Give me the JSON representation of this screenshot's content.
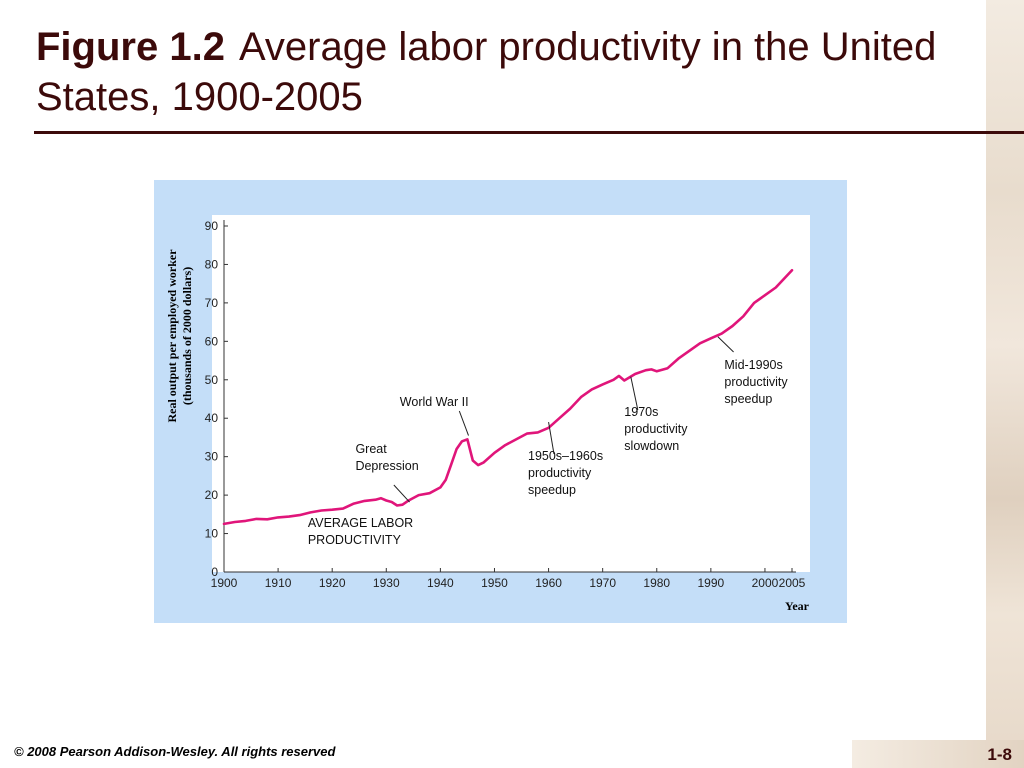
{
  "slide": {
    "title_prefix": "Figure 1.2",
    "title_text": "Average labor productivity in the United States, 1900-2005",
    "footer": "© 2008 Pearson Addison-Wesley. All rights reserved",
    "page_number": "1-8"
  },
  "colors": {
    "title": "#3c0a0a",
    "panel": "#c4def8",
    "line": "#e0157a"
  },
  "chart_data": {
    "type": "line",
    "ylabel_line1": "Real output per employed worker",
    "ylabel_line2": "(thousands of 2000 dollars)",
    "xlabel": "Year",
    "xlim": [
      1900,
      2005
    ],
    "ylim": [
      0,
      90
    ],
    "x_ticks": [
      1900,
      1910,
      1920,
      1930,
      1940,
      1950,
      1960,
      1970,
      1980,
      1990,
      2000,
      2005
    ],
    "y_ticks": [
      0,
      10,
      20,
      30,
      40,
      50,
      60,
      70,
      80,
      90
    ],
    "grid": false,
    "series": [
      {
        "name": "AVERAGE LABOR PRODUCTIVITY",
        "x": [
          1900,
          1902,
          1904,
          1906,
          1908,
          1910,
          1912,
          1914,
          1916,
          1918,
          1920,
          1922,
          1924,
          1926,
          1928,
          1929,
          1930,
          1931,
          1932,
          1933,
          1934,
          1936,
          1938,
          1940,
          1941,
          1942,
          1943,
          1944,
          1945,
          1946,
          1947,
          1948,
          1950,
          1952,
          1954,
          1956,
          1958,
          1960,
          1962,
          1964,
          1966,
          1968,
          1970,
          1972,
          1973,
          1974,
          1976,
          1978,
          1979,
          1980,
          1982,
          1984,
          1986,
          1988,
          1990,
          1992,
          1994,
          1996,
          1998,
          2000,
          2002,
          2004,
          2005
        ],
        "y": [
          12.5,
          13,
          13.3,
          13.8,
          13.7,
          14.2,
          14.4,
          14.8,
          15.5,
          16,
          16.2,
          16.5,
          17.8,
          18.5,
          18.8,
          19.2,
          18.6,
          18.2,
          17.3,
          17.5,
          18.5,
          20,
          20.5,
          22,
          24,
          28,
          32,
          34,
          34.5,
          29,
          27.8,
          28.5,
          31,
          33,
          34.5,
          36,
          36.3,
          37.5,
          40,
          42.5,
          45.5,
          47.5,
          48.8,
          50,
          51,
          49.8,
          51.5,
          52.5,
          52.7,
          52.2,
          53,
          55.5,
          57.5,
          59.5,
          60.8,
          62,
          64,
          66.5,
          70,
          72,
          74,
          77,
          78.5
        ]
      }
    ],
    "series_label_lines": [
      "AVERAGE LABOR",
      "PRODUCTIVITY"
    ],
    "annotations": [
      {
        "lines": [
          "World War II"
        ]
      },
      {
        "lines": [
          "Great",
          "Depression"
        ]
      },
      {
        "lines": [
          "1950s–1960s",
          "productivity",
          "speedup"
        ]
      },
      {
        "lines": [
          "1970s",
          "productivity",
          "slowdown"
        ]
      },
      {
        "lines": [
          "Mid-1990s",
          "productivity",
          "speedup"
        ]
      }
    ]
  }
}
